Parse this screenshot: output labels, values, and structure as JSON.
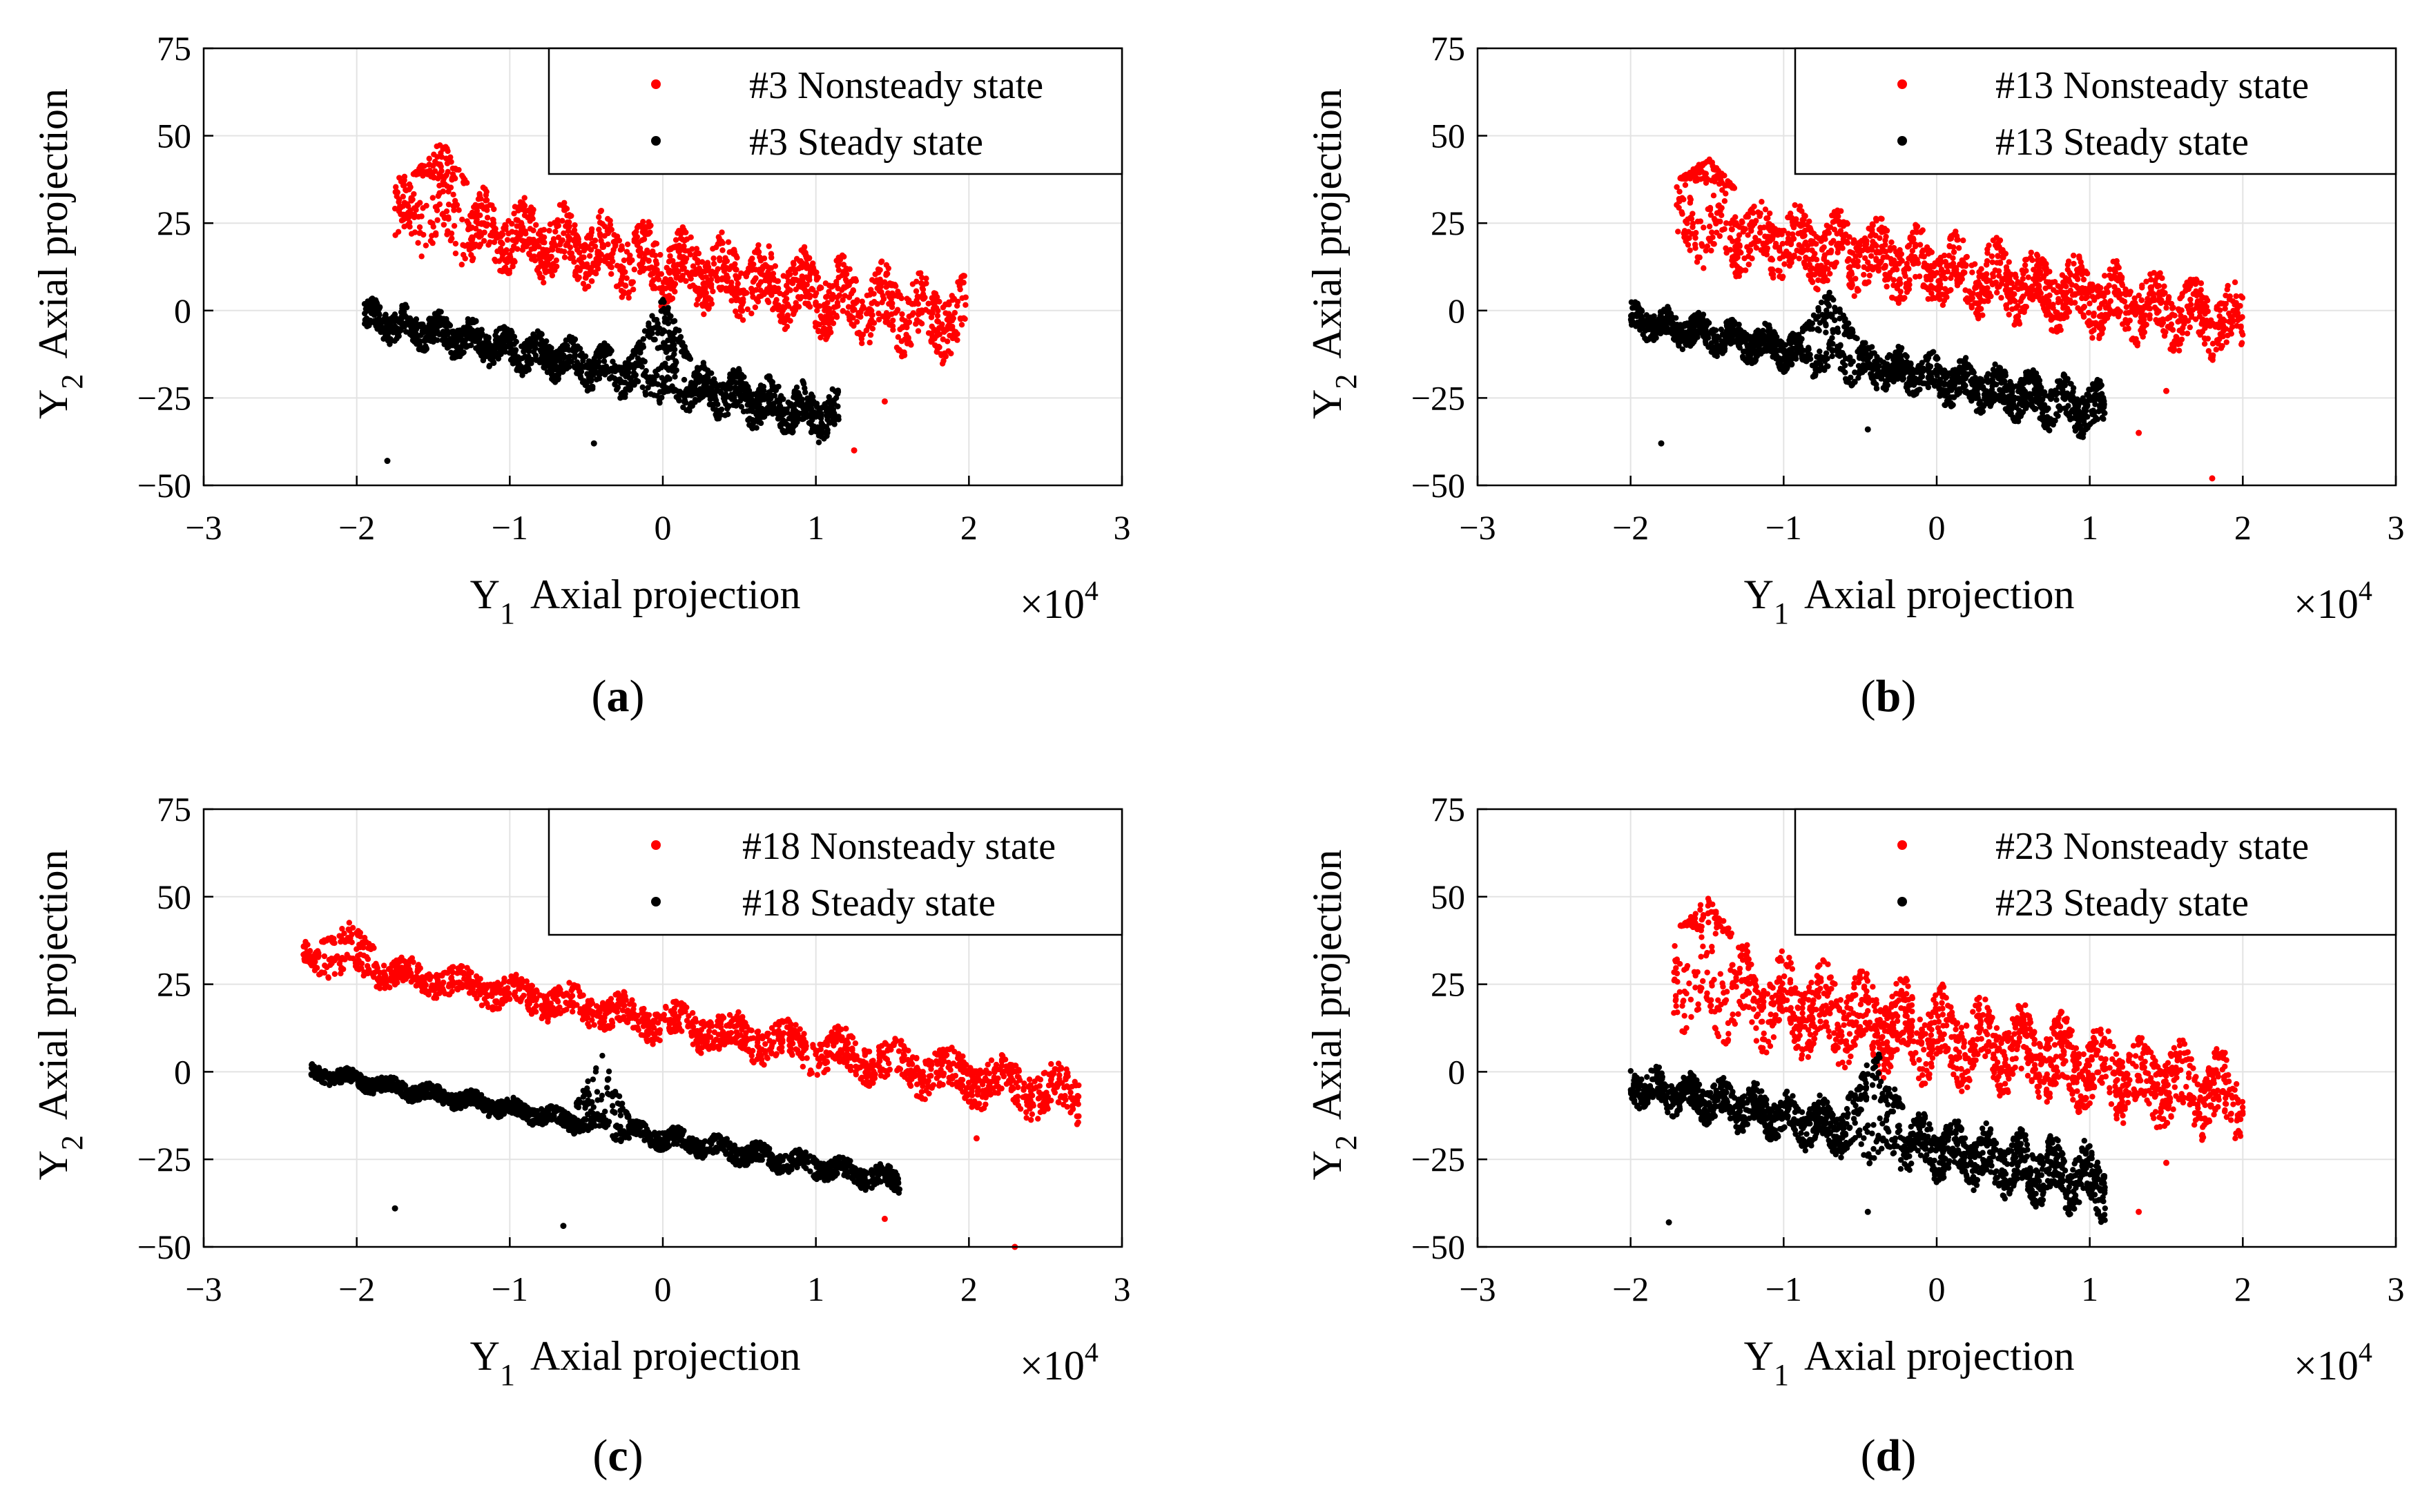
{
  "chart_data": [
    {
      "type": "scatter",
      "panel": "a",
      "caption": {
        "open": "(",
        "letter": "a",
        "close": ")"
      },
      "xlabel": {
        "var": "Y",
        "sub": "1",
        "text": "Axial projection"
      },
      "ylabel": {
        "var": "Y",
        "sub": "2",
        "text": "Axial projection"
      },
      "xlim": [
        -3,
        3
      ],
      "ylim": [
        -50,
        75
      ],
      "xticks": [
        -3,
        -2,
        -1,
        0,
        1,
        2,
        3
      ],
      "yticks": [
        -50,
        -25,
        0,
        25,
        50,
        75
      ],
      "x_multiplier": {
        "base": "×10",
        "exp": "4"
      },
      "grid": true,
      "legend_position": "top-right",
      "series": [
        {
          "name": "#3 Nonsteady state",
          "color": "#ff0000",
          "region": {
            "x": [
              -1.75,
              1.98
            ],
            "y_top_left": 40,
            "y_top_right": 10,
            "y_bot_left": 16,
            "y_bot_right": -17,
            "peak": {
              "x": -1.45,
              "y": 49
            }
          },
          "outliers": [
            {
              "x": 1.25,
              "y": -40
            },
            {
              "x": 1.45,
              "y": -26
            }
          ]
        },
        {
          "name": "#3 Steady state",
          "color": "#000000",
          "region": {
            "x": [
              -1.95,
              1.15
            ],
            "y_top_left": 4,
            "y_top_right": -22,
            "y_bot_left": -8,
            "y_bot_right": -40,
            "peak": {
              "x": 0.0,
              "y": 5
            }
          },
          "outliers": [
            {
              "x": -1.8,
              "y": -43
            },
            {
              "x": -0.45,
              "y": -38
            }
          ]
        }
      ]
    },
    {
      "type": "scatter",
      "panel": "b",
      "caption": {
        "open": "(",
        "letter": "b",
        "close": ")"
      },
      "xlabel": {
        "var": "Y",
        "sub": "1",
        "text": "Axial projection"
      },
      "ylabel": {
        "var": "Y",
        "sub": "2",
        "text": "Axial projection"
      },
      "xlim": [
        -3,
        3
      ],
      "ylim": [
        -50,
        75
      ],
      "xticks": [
        -3,
        -2,
        -1,
        0,
        1,
        2,
        3
      ],
      "yticks": [
        -50,
        -25,
        0,
        25,
        50,
        75
      ],
      "x_multiplier": {
        "base": "×10",
        "exp": "4"
      },
      "grid": true,
      "legend_position": "top-right",
      "series": [
        {
          "name": "#13 Nonsteady state",
          "color": "#ff0000",
          "region": {
            "x": [
              -1.7,
              2.0
            ],
            "y_top_left": 38,
            "y_top_right": 8,
            "y_bot_left": 12,
            "y_bot_right": -16,
            "peak": {
              "x": -1.5,
              "y": 44
            }
          },
          "outliers": [
            {
              "x": 1.32,
              "y": -35
            },
            {
              "x": 1.8,
              "y": -48
            },
            {
              "x": 1.5,
              "y": -23
            }
          ]
        },
        {
          "name": "#13 Steady state",
          "color": "#000000",
          "region": {
            "x": [
              -2.0,
              1.1
            ],
            "y_top_left": 3,
            "y_top_right": -20,
            "y_bot_left": -8,
            "y_bot_right": -38,
            "peak": {
              "x": -0.7,
              "y": 6
            }
          },
          "outliers": [
            {
              "x": -1.8,
              "y": -38
            },
            {
              "x": -0.45,
              "y": -34
            }
          ]
        }
      ]
    },
    {
      "type": "scatter",
      "panel": "c",
      "caption": {
        "open": "(",
        "letter": "c",
        "close": ")"
      },
      "xlabel": {
        "var": "Y",
        "sub": "1",
        "text": "Axial projection"
      },
      "ylabel": {
        "var": "Y",
        "sub": "2",
        "text": "Axial projection"
      },
      "xlim": [
        -3,
        3
      ],
      "ylim": [
        -50,
        75
      ],
      "xticks": [
        -3,
        -2,
        -1,
        0,
        1,
        2,
        3
      ],
      "yticks": [
        -50,
        -25,
        0,
        25,
        50,
        75
      ],
      "x_multiplier": {
        "base": "×10",
        "exp": "4"
      },
      "grid": true,
      "legend_position": "top-right",
      "series": [
        {
          "name": "#18 Nonsteady state",
          "color": "#ff0000",
          "region": {
            "x": [
              -2.35,
              2.72
            ],
            "y_top_left": 38,
            "y_top_right": 2,
            "y_bot_left": 28,
            "y_bot_right": -17,
            "peak": {
              "x": -2.05,
              "y": 43
            }
          },
          "outliers": [
            {
              "x": 1.45,
              "y": -42
            },
            {
              "x": 2.3,
              "y": -50
            },
            {
              "x": 2.05,
              "y": -19
            }
          ]
        },
        {
          "name": "#18 Steady state",
          "color": "#000000",
          "region": {
            "x": [
              -2.3,
              1.55
            ],
            "y_top_left": 3,
            "y_top_right": -27,
            "y_bot_left": -3,
            "y_bot_right": -36,
            "peak": {
              "x": -0.4,
              "y": 7
            }
          },
          "outliers": [
            {
              "x": -1.75,
              "y": -39
            },
            {
              "x": -0.65,
              "y": -44
            }
          ]
        }
      ]
    },
    {
      "type": "scatter",
      "panel": "d",
      "caption": {
        "open": "(",
        "letter": "d",
        "close": ")"
      },
      "xlabel": {
        "var": "Y",
        "sub": "1",
        "text": "Axial projection"
      },
      "ylabel": {
        "var": "Y",
        "sub": "2",
        "text": "Axial projection"
      },
      "xlim": [
        -3,
        3
      ],
      "ylim": [
        -50,
        75
      ],
      "xticks": [
        -3,
        -2,
        -1,
        0,
        1,
        2,
        3
      ],
      "yticks": [
        -50,
        -25,
        0,
        25,
        50,
        75
      ],
      "x_multiplier": {
        "base": "×10",
        "exp": "4"
      },
      "grid": true,
      "legend_position": "top-right",
      "series": [
        {
          "name": "#23 Nonsteady state",
          "color": "#ff0000",
          "region": {
            "x": [
              -1.72,
              2.0
            ],
            "y_top_left": 42,
            "y_top_right": 6,
            "y_bot_left": 10,
            "y_bot_right": -22,
            "peak": {
              "x": -1.5,
              "y": 50
            }
          },
          "outliers": [
            {
              "x": 1.32,
              "y": -40
            },
            {
              "x": 1.5,
              "y": -26
            }
          ]
        },
        {
          "name": "#23 Steady state",
          "color": "#000000",
          "region": {
            "x": [
              -2.0,
              1.1
            ],
            "y_top_left": 3,
            "y_top_right": -20,
            "y_bot_left": -10,
            "y_bot_right": -44,
            "peak": {
              "x": -0.4,
              "y": 7
            }
          },
          "outliers": [
            {
              "x": -1.75,
              "y": -43
            },
            {
              "x": -0.45,
              "y": -40
            }
          ]
        }
      ]
    }
  ]
}
